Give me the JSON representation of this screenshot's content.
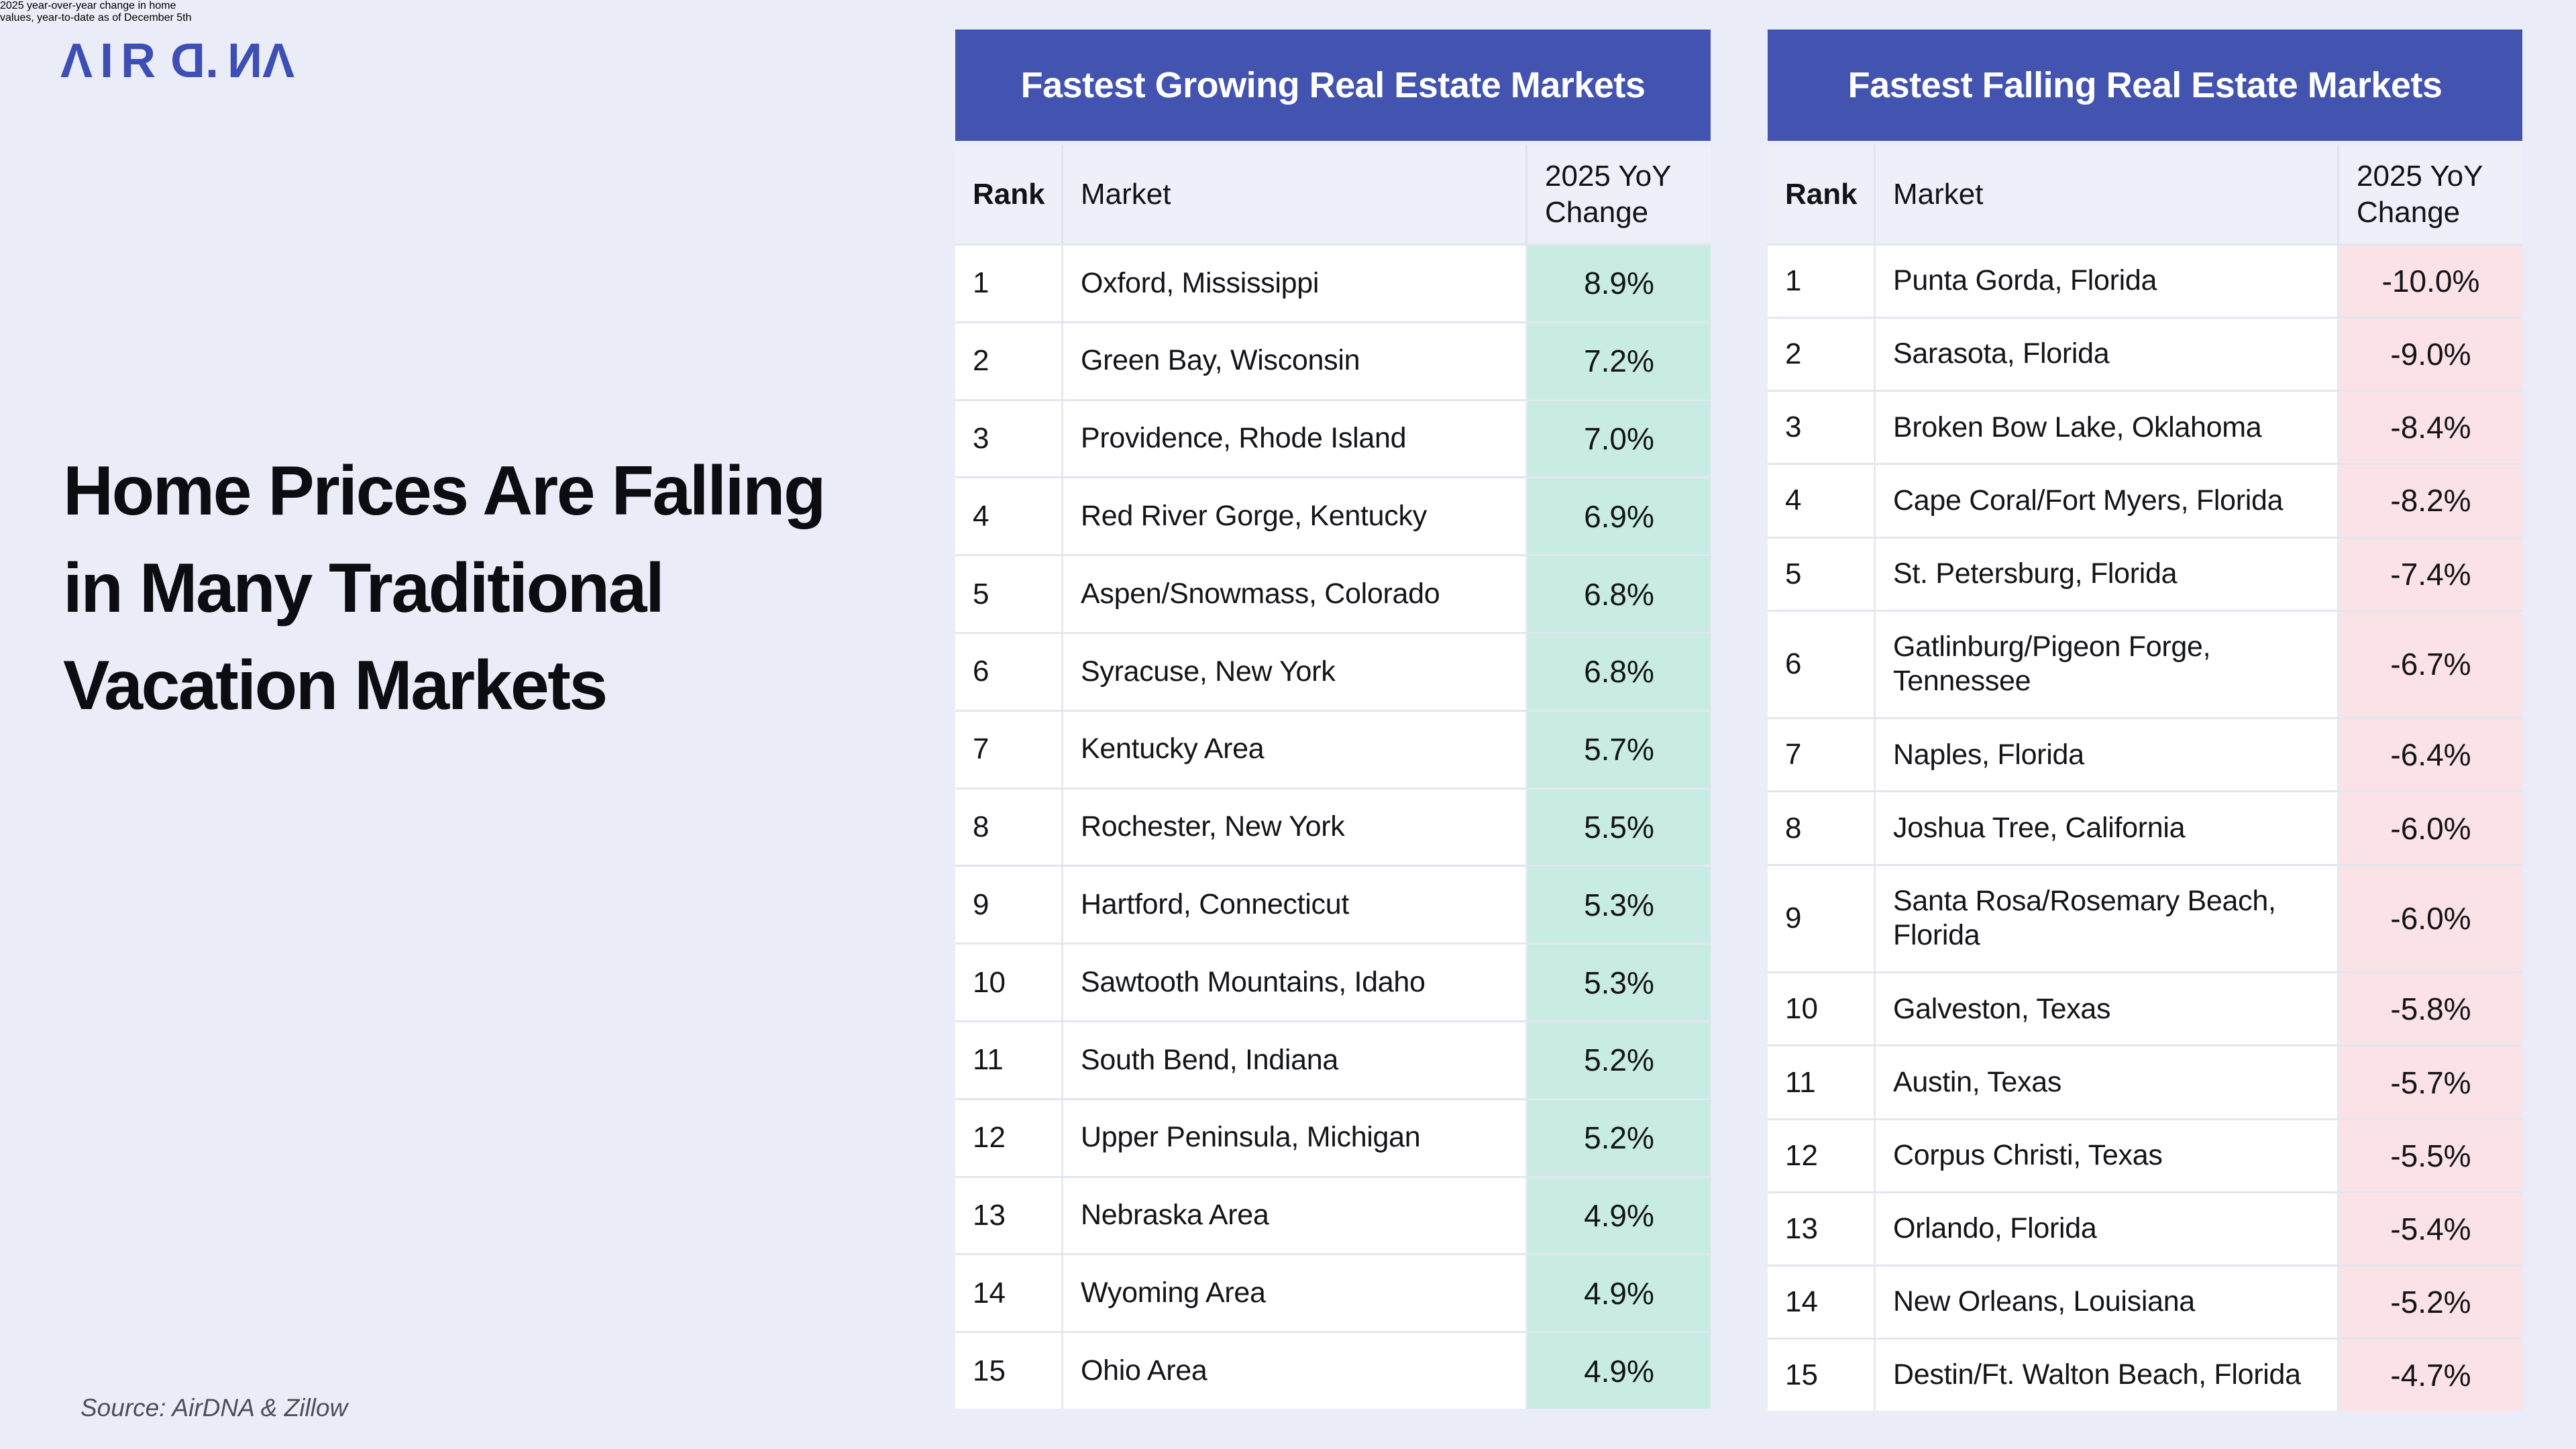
{
  "brand": {
    "name": "AIRDNA",
    "logo_color": "#3d4eb5",
    "letters": [
      {
        "ch": "Λ",
        "flip": false
      },
      {
        "ch": "I",
        "flip": false
      },
      {
        "ch": "R",
        "flip": false
      },
      {
        "ch": "D",
        "flip": true
      },
      {
        "ch": ".",
        "flip": false,
        "dot": true
      },
      {
        "ch": "N",
        "flip": true
      },
      {
        "ch": "Λ",
        "flip": false
      }
    ]
  },
  "headline": {
    "lines": [
      "Home Prices Are Falling",
      "in Many Traditional",
      "Vacation Markets"
    ]
  },
  "subtitle": {
    "lines": [
      "2025 year-over-year change in home",
      "values, year-to-date as of December 5th"
    ]
  },
  "source": {
    "text": "Source: AirDNA & Zillow"
  },
  "colors": {
    "page_background": "#eaecf7",
    "table_header_blue": "#4253b0",
    "growing_accent_green": "#c9ece2",
    "falling_accent_pink": "#fbe2e7",
    "title_text": "#0c0d10",
    "subtitle_text": "#54585f"
  },
  "chart_data": [
    {
      "type": "table",
      "title": "Fastest Growing Real Estate Markets",
      "accent_color": "#c9ece2",
      "columns": [
        "Rank",
        "Market",
        "2025 YoY Change"
      ],
      "rows": [
        [
          "1",
          "Oxford, Mississippi",
          "8.9%"
        ],
        [
          "2",
          "Green Bay, Wisconsin",
          "7.2%"
        ],
        [
          "3",
          "Providence, Rhode Island",
          "7.0%"
        ],
        [
          "4",
          "Red River Gorge, Kentucky",
          "6.9%"
        ],
        [
          "5",
          "Aspen/Snowmass, Colorado",
          "6.8%"
        ],
        [
          "6",
          "Syracuse, New York",
          "6.8%"
        ],
        [
          "7",
          "Kentucky Area",
          "5.7%"
        ],
        [
          "8",
          "Rochester, New York",
          "5.5%"
        ],
        [
          "9",
          "Hartford, Connecticut",
          "5.3%"
        ],
        [
          "10",
          "Sawtooth Mountains, Idaho",
          "5.3%"
        ],
        [
          "11",
          "South Bend, Indiana",
          "5.2%"
        ],
        [
          "12",
          "Upper Peninsula, Michigan",
          "5.2%"
        ],
        [
          "13",
          "Nebraska Area",
          "4.9%"
        ],
        [
          "14",
          "Wyoming Area",
          "4.9%"
        ],
        [
          "15",
          "Ohio Area",
          "4.9%"
        ]
      ]
    },
    {
      "type": "table",
      "title": "Fastest Falling Real Estate Markets",
      "accent_color": "#fbe2e7",
      "columns": [
        "Rank",
        "Market",
        "2025 YoY Change"
      ],
      "rows": [
        [
          "1",
          "Punta Gorda, Florida",
          "-10.0%"
        ],
        [
          "2",
          "Sarasota, Florida",
          "-9.0%"
        ],
        [
          "3",
          "Broken Bow Lake, Oklahoma",
          "-8.4%"
        ],
        [
          "4",
          "Cape Coral/Fort Myers, Florida",
          "-8.2%"
        ],
        [
          "5",
          "St. Petersburg, Florida",
          "-7.4%"
        ],
        [
          "6",
          "Gatlinburg/Pigeon Forge, Tennessee",
          "-6.7%"
        ],
        [
          "7",
          "Naples, Florida",
          "-6.4%"
        ],
        [
          "8",
          "Joshua Tree, California",
          "-6.0%"
        ],
        [
          "9",
          "Santa Rosa/Rosemary Beach, Florida",
          "-6.0%"
        ],
        [
          "10",
          "Galveston, Texas",
          "-5.8%"
        ],
        [
          "11",
          "Austin, Texas",
          "-5.7%"
        ],
        [
          "12",
          "Corpus Christi, Texas",
          "-5.5%"
        ],
        [
          "13",
          "Orlando, Florida",
          "-5.4%"
        ],
        [
          "14",
          "New Orleans, Louisiana",
          "-5.2%"
        ],
        [
          "15",
          "Destin/Ft. Walton Beach, Florida",
          "-4.7%"
        ]
      ]
    }
  ]
}
